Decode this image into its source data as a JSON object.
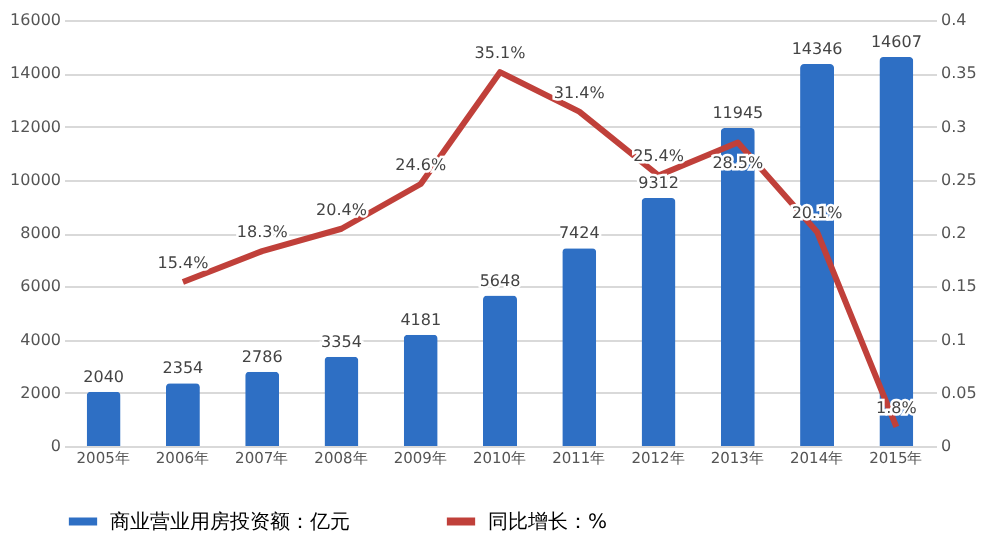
{
  "chart_data": {
    "type": "bar",
    "categories": [
      "2005年",
      "2006年",
      "2007年",
      "2008年",
      "2009年",
      "2010年",
      "2011年",
      "2012年",
      "2013年",
      "2014年",
      "2015年"
    ],
    "series": [
      {
        "name": "商业营业用房投资额：亿元",
        "color": "#2e6fc4",
        "values": [
          2040,
          2354,
          2786,
          3354,
          4181,
          5648,
          7424,
          9312,
          11945,
          14346,
          14607
        ]
      },
      {
        "name": "同比增长：%",
        "type": "line",
        "axis": "y2",
        "color": "#c0403a",
        "values": [
          null,
          0.154,
          0.183,
          0.204,
          0.246,
          0.351,
          0.314,
          0.254,
          0.285,
          0.201,
          0.018
        ],
        "value_labels": [
          null,
          "15.4%",
          "18.3%",
          "20.4%",
          "24.6%",
          "35.1%",
          "31.4%",
          "25.4%",
          "28.5%",
          "20.1%",
          "1.8%"
        ]
      }
    ],
    "ylim": [
      0,
      16000
    ],
    "yticks": [
      0,
      2000,
      4000,
      6000,
      8000,
      10000,
      12000,
      14000,
      16000
    ],
    "y2lim": [
      0,
      0.4
    ],
    "y2ticks": [
      0,
      0.05,
      0.1,
      0.15,
      0.2,
      0.25,
      0.3,
      0.35,
      0.4
    ],
    "grid": "y",
    "legend": "bottom",
    "data_labels": true
  }
}
